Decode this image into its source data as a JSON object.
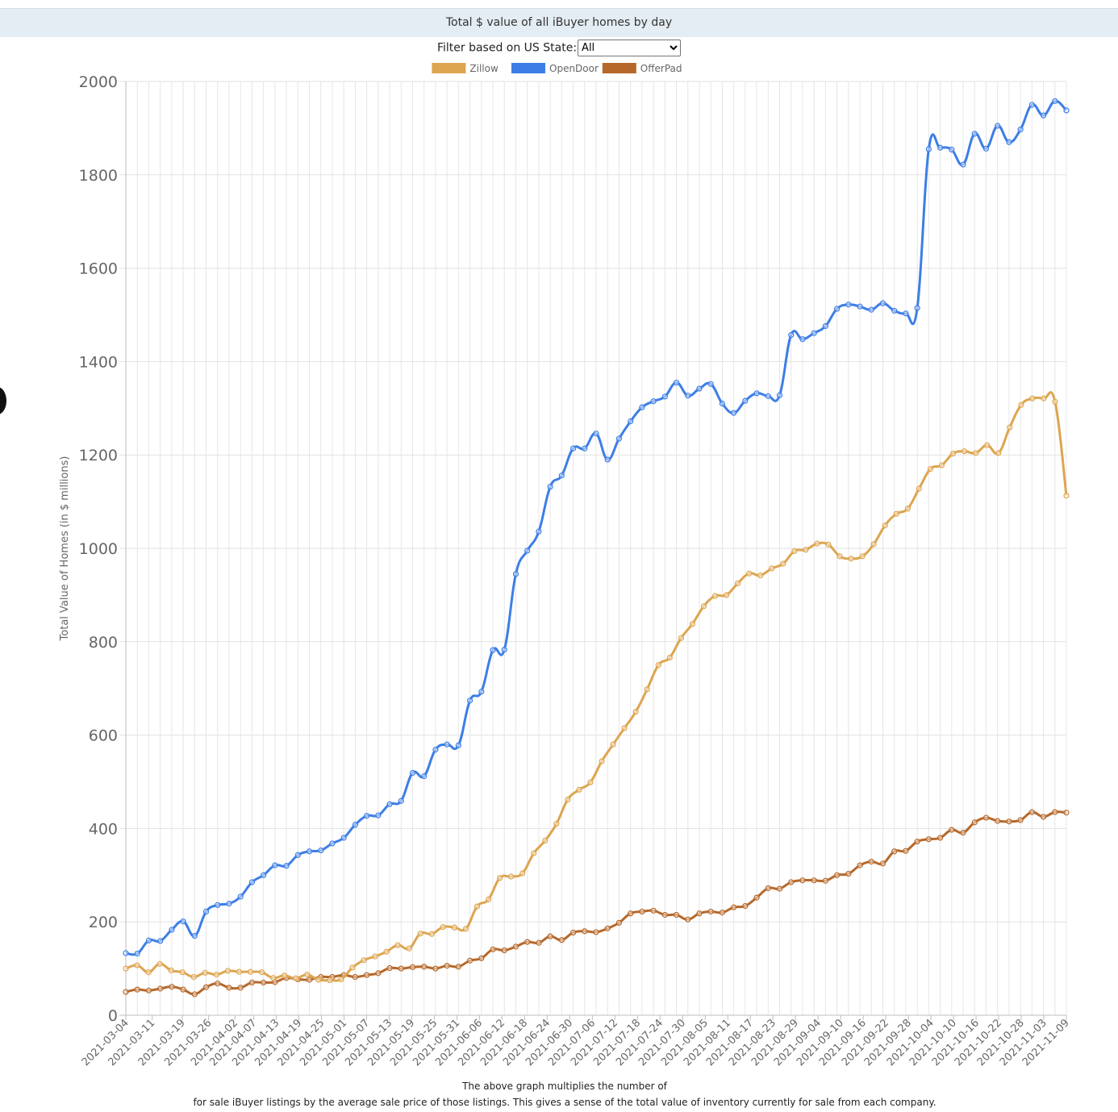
{
  "header": {
    "title": "Total $ value of all iBuyer homes by day"
  },
  "filter": {
    "label": "Filter based on US State:",
    "selected": "All"
  },
  "caption": {
    "line1": "The above graph multiplies the number of",
    "line2": "for sale iBuyer listings by the average sale price of those listings. This gives a sense of the total value of inventory currently for sale from each company."
  },
  "chart_data": {
    "type": "line",
    "title": "",
    "xlabel": "",
    "ylabel": "Total Value of Homes (in $ millions)",
    "ylim": [
      0,
      2000
    ],
    "yticks": [
      0,
      200,
      400,
      600,
      800,
      1000,
      1200,
      1400,
      1600,
      1800,
      2000
    ],
    "grid": true,
    "legend_position": "top",
    "x_start": "2021-03-04",
    "x_end": "2021-11-09",
    "x_tick_labels": [
      "2021-03-04",
      "2021-03-11",
      "2021-03-19",
      "2021-03-26",
      "2021-04-02",
      "2021-04-07",
      "2021-04-13",
      "2021-04-19",
      "2021-04-25",
      "2021-05-01",
      "2021-05-07",
      "2021-05-13",
      "2021-05-19",
      "2021-05-25",
      "2021-05-31",
      "2021-06-06",
      "2021-06-12",
      "2021-06-18",
      "2021-06-24",
      "2021-06-30",
      "2021-07-06",
      "2021-07-12",
      "2021-07-18",
      "2021-07-24",
      "2021-07-30",
      "2021-08-05",
      "2021-08-11",
      "2021-08-17",
      "2021-08-23",
      "2021-08-29",
      "2021-09-04",
      "2021-09-10",
      "2021-09-16",
      "2021-09-22",
      "2021-09-28",
      "2021-10-04",
      "2021-10-10",
      "2021-10-16",
      "2021-10-22",
      "2021-10-28",
      "2021-11-03",
      "2021-11-09"
    ],
    "series": [
      {
        "name": "Zillow",
        "color": "#dda54f",
        "values": [
          100,
          107,
          92,
          110,
          96,
          92,
          82,
          91,
          87,
          95,
          93,
          93,
          92,
          80,
          85,
          79,
          87,
          76,
          75,
          77,
          102,
          118,
          126,
          136,
          150,
          143,
          175,
          174,
          189,
          188,
          185,
          233,
          248,
          294,
          297,
          304,
          347,
          374,
          410,
          462,
          483,
          499,
          544,
          580,
          615,
          650,
          698,
          750,
          766,
          808,
          838,
          876,
          898,
          900,
          925,
          946,
          942,
          957,
          967,
          994,
          997,
          1010,
          1008,
          983,
          978,
          983,
          1009,
          1049,
          1074,
          1085,
          1128,
          1170,
          1178,
          1203,
          1208,
          1204,
          1221,
          1204,
          1259,
          1307,
          1321,
          1321,
          1314,
          1113
        ]
      },
      {
        "name": "OpenDoor",
        "color": "#3d7ee6",
        "values": [
          133,
          132,
          160,
          159,
          183,
          201,
          170,
          222,
          236,
          239,
          254,
          285,
          300,
          321,
          320,
          343,
          351,
          353,
          368,
          380,
          408,
          427,
          428,
          452,
          459,
          519,
          512,
          569,
          580,
          578,
          674,
          693,
          782,
          783,
          945,
          995,
          1036,
          1132,
          1156,
          1214,
          1214,
          1246,
          1190,
          1235,
          1272,
          1302,
          1315,
          1325,
          1355,
          1327,
          1342,
          1352,
          1310,
          1290,
          1316,
          1332,
          1326,
          1328,
          1457,
          1448,
          1461,
          1476,
          1513,
          1522,
          1518,
          1511,
          1525,
          1509,
          1503,
          1515,
          1855,
          1858,
          1854,
          1822,
          1888,
          1856,
          1905,
          1870,
          1897,
          1950,
          1927,
          1958,
          1938
        ]
      },
      {
        "name": "OfferPad",
        "color": "#b6682a",
        "values": [
          50,
          55,
          53,
          57,
          61,
          55,
          45,
          60,
          68,
          59,
          59,
          70,
          70,
          71,
          80,
          77,
          76,
          82,
          82,
          86,
          82,
          86,
          90,
          101,
          100,
          103,
          104,
          100,
          106,
          104,
          117,
          122,
          141,
          139,
          147,
          157,
          155,
          169,
          161,
          177,
          180,
          178,
          186,
          198,
          218,
          222,
          224,
          215,
          215,
          205,
          218,
          222,
          220,
          231,
          234,
          252,
          272,
          271,
          285,
          289,
          289,
          288,
          300,
          303,
          321,
          329,
          325,
          351,
          352,
          372,
          377,
          380,
          397,
          391,
          413,
          423,
          416,
          415,
          418,
          435,
          425,
          435,
          434
        ]
      }
    ]
  }
}
